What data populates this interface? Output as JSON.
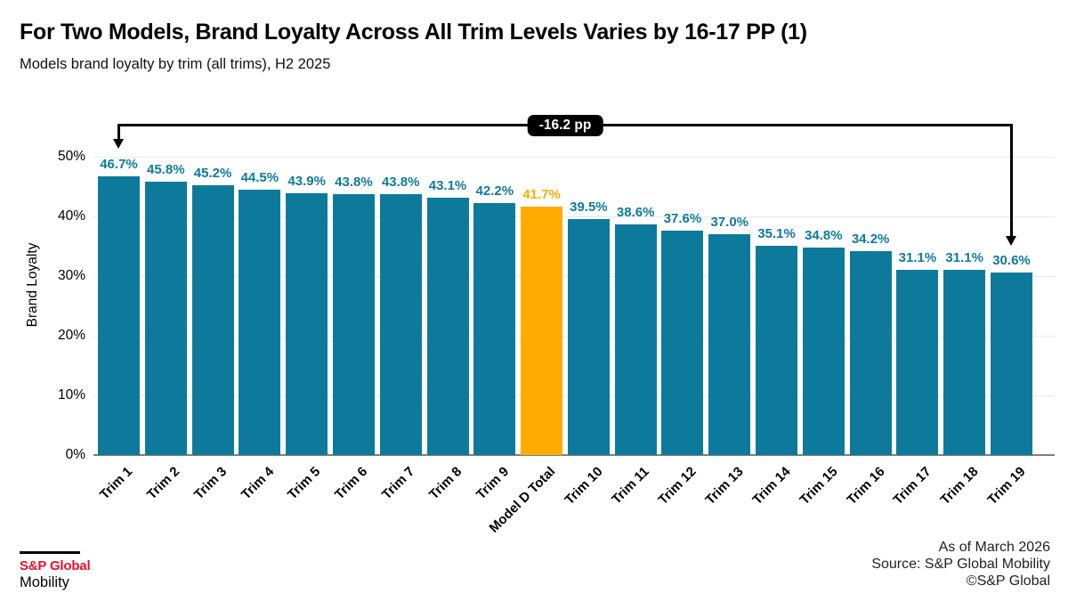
{
  "header": {
    "title": "For Two Models, Brand Loyalty Across All Trim Levels Varies by 16-17 PP (1)",
    "subtitle": "Models brand loyalty by trim (all trims), H2 2025"
  },
  "chart_data": {
    "type": "bar",
    "title": "Models brand loyalty by trim (all trims), H2 2025",
    "categories": [
      "Trim 1",
      "Trim 2",
      "Trim 3",
      "Trim 4",
      "Trim 5",
      "Trim 6",
      "Trim 7",
      "Trim 8",
      "Trim 9",
      "Model D Total",
      "Trim 10",
      "Trim 11",
      "Trim 12",
      "Trim 13",
      "Trim 14",
      "Trim 15",
      "Trim 16",
      "Trim 17",
      "Trim 18",
      "Trim 19"
    ],
    "values": [
      46.7,
      45.8,
      45.2,
      44.5,
      43.9,
      43.8,
      43.8,
      43.1,
      42.2,
      41.7,
      39.5,
      38.6,
      37.6,
      37.0,
      35.1,
      34.8,
      34.2,
      31.1,
      31.1,
      30.6
    ],
    "value_labels": [
      "46.7%",
      "45.8%",
      "45.2%",
      "44.5%",
      "43.9%",
      "43.8%",
      "43.8%",
      "43.1%",
      "42.2%",
      "41.7%",
      "39.5%",
      "38.6%",
      "37.6%",
      "37.0%",
      "35.1%",
      "34.8%",
      "34.2%",
      "31.1%",
      "31.1%",
      "30.6%"
    ],
    "xlabel": "",
    "ylabel": "Brand Loyalty",
    "ylim": [
      0,
      50
    ],
    "yticks": [
      {
        "value": 0,
        "label": "0%"
      },
      {
        "value": 10,
        "label": "10%"
      },
      {
        "value": 20,
        "label": "20%"
      },
      {
        "value": 30,
        "label": "30%"
      },
      {
        "value": 40,
        "label": "40%"
      },
      {
        "value": 50,
        "label": "50%"
      }
    ],
    "grid": true,
    "legend_position": "none",
    "highlight_index": 9,
    "colors": {
      "bar": "#0E7A9B",
      "highlight_bar": "#FFAB00",
      "value_label": "#0E7A9B",
      "highlight_value_label": "#FFAB00",
      "gridline": "#E8E8E8",
      "axis_line": "#7F7F7F"
    },
    "annotation": {
      "label": "-16.2 pp",
      "from_category": "Trim 1",
      "to_category": "Trim 19"
    }
  },
  "footer": {
    "as_of": "As of March 2026",
    "source": "Source: S&P Global Mobility",
    "copyright": "©S&P Global"
  },
  "logo": {
    "brand": "S&P Global",
    "division": "Mobility",
    "brand_color": "#E2122E"
  }
}
